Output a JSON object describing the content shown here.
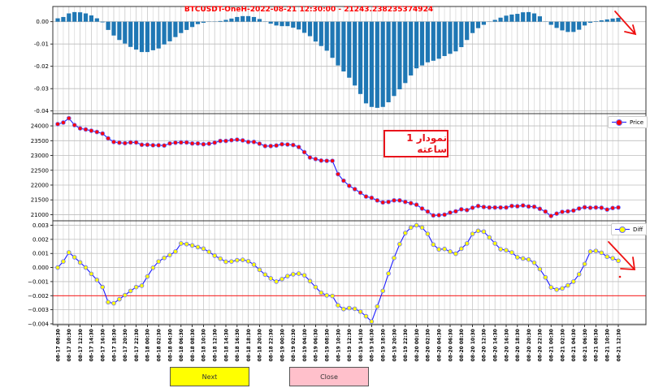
{
  "colors": {
    "bar": "#1f77b4",
    "line": "#1a1aff",
    "price_marker": "#ff0000",
    "diff_marker": "#ffff00",
    "threshold": "#ff0000",
    "annotation": "#e8141c",
    "next_button": "#ffff00",
    "close_button": "#ffc0cb"
  },
  "title": "BTCUSDT-OneH-2022-08-21 12:30:00 - 21243.238235374924",
  "annotation": "نمودار 1 ساعته",
  "buttons": {
    "next": "Next",
    "close": "Close"
  },
  "chart_data": [
    {
      "type": "bar",
      "name": "histogram",
      "ylim": [
        -0.0412,
        0.0068
      ],
      "yticks": [
        "0.00",
        "-0.01",
        "-0.02",
        "-0.03",
        "-0.04"
      ],
      "ytick_values": [
        0,
        -0.01,
        -0.02,
        -0.03,
        -0.04
      ],
      "values": [
        0.0015,
        0.0021,
        0.0037,
        0.0043,
        0.0042,
        0.0037,
        0.0028,
        0.0015,
        -0.0003,
        -0.0037,
        -0.0062,
        -0.0082,
        -0.0098,
        -0.0113,
        -0.0125,
        -0.0136,
        -0.0136,
        -0.0128,
        -0.012,
        -0.0102,
        -0.0088,
        -0.0069,
        -0.0051,
        -0.0037,
        -0.0024,
        -0.0011,
        -0.0005,
        -0.0001,
        0,
        0.0003,
        0.0008,
        0.0014,
        0.0021,
        0.0025,
        0.0025,
        0.0021,
        0.0012,
        0,
        -0.0009,
        -0.0017,
        -0.002,
        -0.002,
        -0.0027,
        -0.0035,
        -0.005,
        -0.0065,
        -0.0089,
        -0.0109,
        -0.013,
        -0.0162,
        -0.0196,
        -0.0223,
        -0.0251,
        -0.0286,
        -0.0324,
        -0.0366,
        -0.0382,
        -0.0386,
        -0.0382,
        -0.0361,
        -0.0333,
        -0.0303,
        -0.0275,
        -0.0241,
        -0.0209,
        -0.0196,
        -0.0182,
        -0.0175,
        -0.0166,
        -0.0154,
        -0.0144,
        -0.0133,
        -0.0114,
        -0.0082,
        -0.0051,
        -0.0029,
        -0.0014,
        0,
        0.0008,
        0.0018,
        0.0027,
        0.0032,
        0.0035,
        0.0042,
        0.0043,
        0.0037,
        0.0024,
        0,
        -0.0014,
        -0.0028,
        -0.0039,
        -0.0046,
        -0.0046,
        -0.0036,
        -0.0017,
        -0.0005,
        0.0002,
        0.0006,
        0.001,
        0.0014,
        0.0017
      ]
    },
    {
      "type": "line",
      "name": "Price",
      "legend": "Price",
      "legend_position": "top-right",
      "ylim": [
        20793,
        24413
      ],
      "yticks": [
        "24000",
        "23500",
        "23000",
        "22500",
        "22000",
        "21500",
        "21000"
      ],
      "ytick_values": [
        24000,
        23500,
        23000,
        22500,
        22000,
        21500,
        21000
      ],
      "values": [
        24060,
        24112,
        24259,
        24026,
        23914,
        23879,
        23836,
        23793,
        23741,
        23578,
        23457,
        23431,
        23414,
        23440,
        23440,
        23362,
        23362,
        23345,
        23345,
        23336,
        23405,
        23431,
        23440,
        23440,
        23405,
        23405,
        23379,
        23397,
        23431,
        23491,
        23491,
        23517,
        23534,
        23509,
        23457,
        23457,
        23397,
        23319,
        23319,
        23336,
        23379,
        23371,
        23353,
        23285,
        23112,
        22931,
        22879,
        22828,
        22819,
        22819,
        22371,
        22147,
        21974,
        21862,
        21741,
        21612,
        21569,
        21483,
        21414,
        21431,
        21483,
        21483,
        21431,
        21388,
        21336,
        21207,
        21104,
        20974,
        20983,
        21000,
        21069,
        21112,
        21181,
        21155,
        21233,
        21293,
        21259,
        21241,
        21241,
        21241,
        21241,
        21293,
        21284,
        21310,
        21276,
        21267,
        21198,
        21104,
        20957,
        21035,
        21095,
        21112,
        21138,
        21207,
        21250,
        21233,
        21241,
        21233,
        21172,
        21224,
        21243
      ]
    },
    {
      "type": "line",
      "name": "Diff",
      "legend": "Diff",
      "legend_position": "top-right",
      "ylim": [
        -0.00406,
        0.00332
      ],
      "threshold": -0.002,
      "yticks": [
        "0.003",
        "0.002",
        "0.001",
        "0.000",
        "−0.001",
        "−0.002",
        "−0.003",
        "−0.004"
      ],
      "ytick_values": [
        0.003,
        0.002,
        0.001,
        0,
        -0.001,
        -0.002,
        -0.003,
        -0.004
      ],
      "values": [
        0,
        0.00043,
        0.00107,
        0.00073,
        0.00036,
        0,
        -0.00045,
        -0.00088,
        -0.00139,
        -0.00246,
        -0.00254,
        -0.00225,
        -0.00196,
        -0.00166,
        -0.00139,
        -0.00129,
        -0.00064,
        -2e-05,
        0.00043,
        0.00068,
        0.00089,
        0.00113,
        0.00171,
        0.00166,
        0.00157,
        0.00145,
        0.00134,
        0.00111,
        0.00084,
        0.00063,
        0.00041,
        0.00043,
        0.00052,
        0.00055,
        0.00045,
        0.00021,
        -0.00016,
        -0.0005,
        -0.00077,
        -0.001,
        -0.00082,
        -0.00061,
        -0.00048,
        -0.00043,
        -0.00055,
        -0.00096,
        -0.00139,
        -0.00179,
        -0.00198,
        -0.00202,
        -0.00268,
        -0.00295,
        -0.00288,
        -0.00293,
        -0.00313,
        -0.00346,
        -0.00384,
        -0.00277,
        -0.00166,
        -0.00043,
        0.00068,
        0.00166,
        0.00245,
        0.00284,
        0.003,
        0.00284,
        0.00239,
        0.00163,
        0.00129,
        0.00132,
        0.00113,
        0.00098,
        0.00134,
        0.00171,
        0.00239,
        0.00261,
        0.00255,
        0.00214,
        0.00171,
        0.0013,
        0.00123,
        0.00107,
        0.00073,
        0.00064,
        0.00057,
        0.00034,
        -0.00011,
        -0.0007,
        -0.00141,
        -0.00157,
        -0.00148,
        -0.00127,
        -0.001,
        -0.00048,
        0.00025,
        0.00113,
        0.00118,
        0.00105,
        0.00077,
        0.00066,
        0.00048
      ]
    }
  ],
  "xtick_labels": [
    "08-17 08:30",
    "08-17 10:30",
    "08-17 12:30",
    "08-17 14:30",
    "08-17 16:30",
    "08-17 18:30",
    "08-17 20:30",
    "08-17 22:30",
    "08-18 00:30",
    "08-18 02:30",
    "08-18 04:30",
    "08-18 06:30",
    "08-18 08:30",
    "08-18 10:30",
    "08-18 12:30",
    "08-18 14:30",
    "08-18 16:30",
    "08-18 18:30",
    "08-18 20:30",
    "08-18 22:30",
    "08-19 00:30",
    "08-19 02:30",
    "08-19 04:30",
    "08-19 06:30",
    "08-19 08:30",
    "08-19 10:30",
    "08-19 12:30",
    "08-19 14:30",
    "08-19 16:30",
    "08-19 18:30",
    "08-19 20:30",
    "08-19 22:30",
    "08-20 00:30",
    "08-20 02:30",
    "08-20 04:30",
    "08-20 06:30",
    "08-20 08:30",
    "08-20 10:30",
    "08-20 12:30",
    "08-20 14:30",
    "08-20 16:30",
    "08-20 18:30",
    "08-20 20:30",
    "08-20 22:30",
    "08-21 00:30",
    "08-21 02:30",
    "08-21 04:30",
    "08-21 06:30",
    "08-21 08:30",
    "08-21 10:30",
    "08-21 12:30"
  ]
}
